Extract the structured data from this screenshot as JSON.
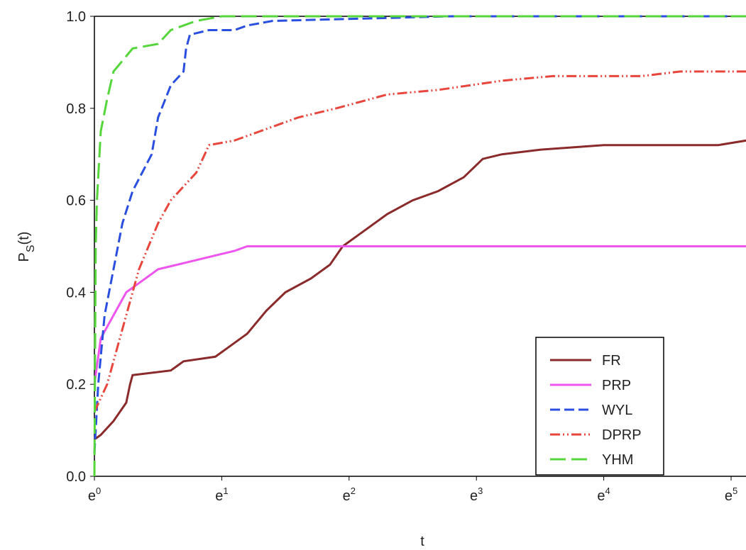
{
  "chart_data": {
    "type": "line",
    "title_x": "t",
    "ylabel": {
      "text": "P",
      "subscript": "S",
      "rest": "(t)"
    },
    "xlim": [
      0,
      5.12
    ],
    "ylim": [
      0,
      1
    ],
    "xticks": [
      {
        "value": 0,
        "label": "e",
        "exponent": "0"
      },
      {
        "value": 1,
        "label": "e",
        "exponent": "1"
      },
      {
        "value": 2,
        "label": "e",
        "exponent": "2"
      },
      {
        "value": 3,
        "label": "e",
        "exponent": "3"
      },
      {
        "value": 4,
        "label": "e",
        "exponent": "4"
      },
      {
        "value": 5,
        "label": "e",
        "exponent": "5"
      }
    ],
    "yticks": [
      {
        "value": 0,
        "label": "0.0"
      },
      0.2,
      0.4,
      0.6,
      0.8,
      {
        "value": 1,
        "label": "1.0"
      }
    ],
    "series": [
      {
        "name": "FR",
        "color": "#8b2a2a",
        "dash": "solid",
        "x": [
          0,
          0.05,
          0.15,
          0.25,
          0.28,
          0.3,
          0.6,
          0.7,
          0.95,
          1.05,
          1.2,
          1.35,
          1.5,
          1.7,
          1.85,
          1.95,
          2.1,
          2.3,
          2.5,
          2.7,
          2.9,
          3.05,
          3.2,
          3.5,
          4,
          4.9,
          5.12
        ],
        "values": [
          0.08,
          0.09,
          0.12,
          0.16,
          0.2,
          0.22,
          0.23,
          0.25,
          0.26,
          0.28,
          0.31,
          0.36,
          0.4,
          0.43,
          0.46,
          0.5,
          0.53,
          0.57,
          0.6,
          0.62,
          0.65,
          0.69,
          0.7,
          0.71,
          0.72,
          0.72,
          0.73
        ]
      },
      {
        "name": "PRP",
        "color": "#ee55ee",
        "dash": "solid",
        "x": [
          0,
          0.05,
          0.15,
          0.25,
          0.35,
          0.5,
          0.8,
          1.1,
          1.2,
          5.12
        ],
        "values": [
          0.2,
          0.3,
          0.35,
          0.4,
          0.42,
          0.45,
          0.47,
          0.49,
          0.5,
          0.5
        ]
      },
      {
        "name": "WYL",
        "color": "#2a4fe0",
        "dash": "dashed",
        "x": [
          0,
          0.03,
          0.08,
          0.15,
          0.22,
          0.3,
          0.45,
          0.5,
          0.6,
          0.7,
          0.72,
          0.75,
          0.9,
          1.1,
          1.2,
          1.4,
          2.8,
          5.12
        ],
        "values": [
          0.05,
          0.2,
          0.35,
          0.45,
          0.55,
          0.62,
          0.7,
          0.78,
          0.85,
          0.88,
          0.93,
          0.96,
          0.97,
          0.97,
          0.98,
          0.99,
          1.0,
          1.0
        ]
      },
      {
        "name": "DPRP",
        "color": "#e8453c",
        "dash": "dashdotdot",
        "x": [
          0,
          0.1,
          0.2,
          0.35,
          0.5,
          0.6,
          0.8,
          0.9,
          1.1,
          1.3,
          1.6,
          1.9,
          2.3,
          2.7,
          3.2,
          3.6,
          4.3,
          4.6,
          5.12
        ],
        "values": [
          0.14,
          0.2,
          0.3,
          0.45,
          0.55,
          0.6,
          0.66,
          0.72,
          0.73,
          0.75,
          0.78,
          0.8,
          0.83,
          0.84,
          0.86,
          0.87,
          0.87,
          0.88,
          0.88
        ]
      },
      {
        "name": "YHM",
        "color": "#55d63a",
        "dash": "longdash",
        "x": [
          0,
          0.01,
          0.02,
          0.05,
          0.1,
          0.15,
          0.3,
          0.5,
          0.6,
          0.8,
          1.0,
          5.12
        ],
        "values": [
          0,
          0.5,
          0.6,
          0.75,
          0.82,
          0.88,
          0.93,
          0.94,
          0.97,
          0.99,
          1.0,
          1.0
        ]
      }
    ]
  }
}
